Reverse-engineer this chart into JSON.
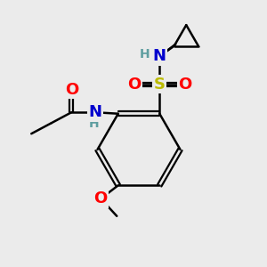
{
  "bg_color": "#ebebeb",
  "bond_color": "#000000",
  "atom_colors": {
    "O": "#ff0000",
    "N": "#0000cd",
    "S": "#bbbb00",
    "H": "#5f9ea0",
    "C": "#000000"
  },
  "font_size_atoms": 13,
  "font_size_h": 10
}
